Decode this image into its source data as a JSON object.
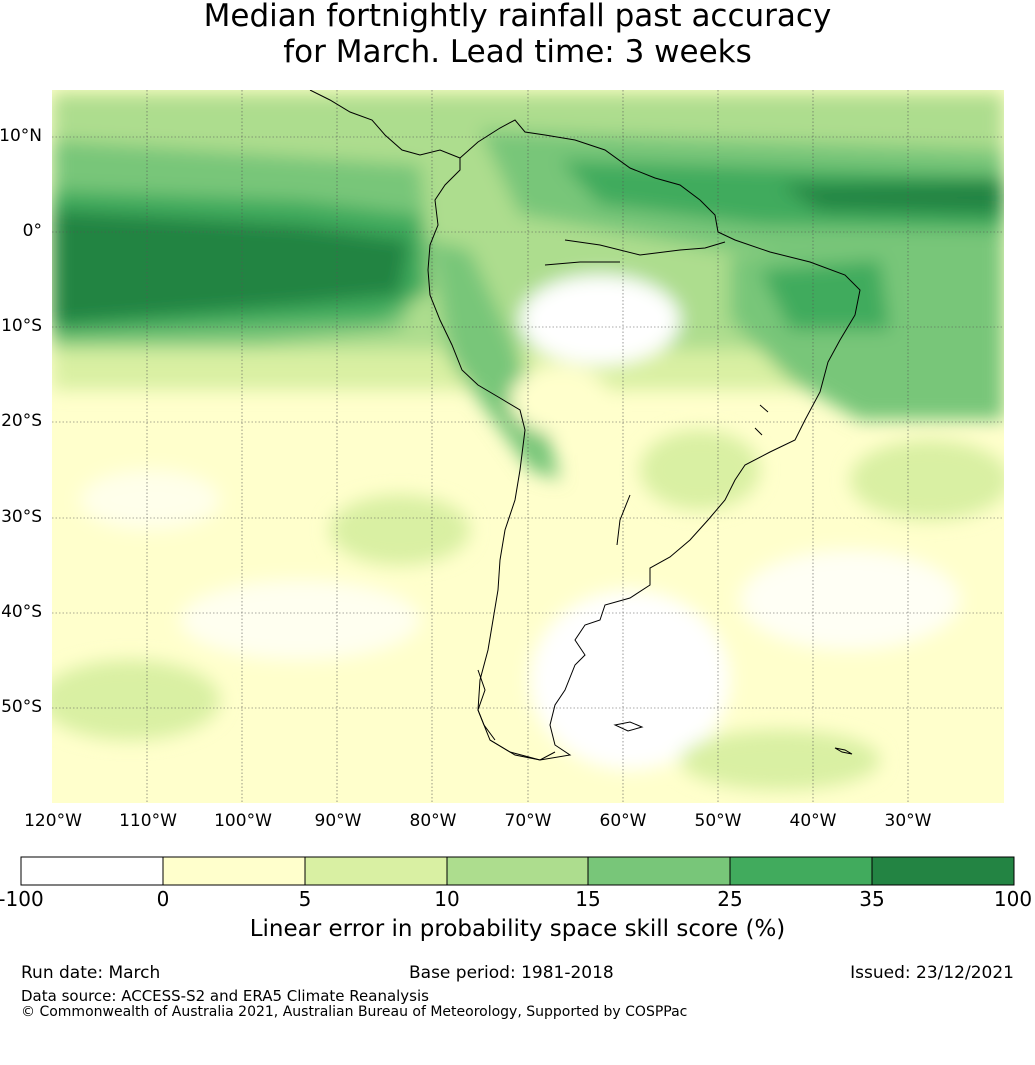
{
  "title": {
    "line1": "Median fortnightly rainfall past accuracy",
    "line2": "for March. Lead time: 3 weeks"
  },
  "map": {
    "lon_labels": [
      "120°W",
      "110°W",
      "100°W",
      "90°W",
      "80°W",
      "70°W",
      "60°W",
      "50°W",
      "40°W",
      "30°W"
    ],
    "lat_labels": [
      "10°N",
      "0°",
      "10°S",
      "20°S",
      "30°S",
      "40°S",
      "50°S"
    ],
    "lon_range": [
      -120,
      -20
    ],
    "lat_range": [
      -60,
      15
    ],
    "gridlines": true,
    "coastline_color": "#000000"
  },
  "colorbar": {
    "ticks": [
      "-100",
      "0",
      "5",
      "10",
      "15",
      "25",
      "35",
      "100"
    ],
    "colors": [
      "#ffffff",
      "#ffffcc",
      "#d9f0a3",
      "#addd8e",
      "#78c679",
      "#41ab5d",
      "#238443"
    ],
    "label": "Linear error in probability space skill score (%)"
  },
  "footer": {
    "run_date": "Run date: March",
    "base_period": "Base period: 1981-2018",
    "issued": "Issued: 23/12/2021",
    "data_source": "Data source: ACCESS-S2 and ERA5 Climate Reanalysis",
    "copyright": "© Commonwealth of Australia 2021, Australian Bureau of Meteorology, Supported by COSPPac"
  }
}
